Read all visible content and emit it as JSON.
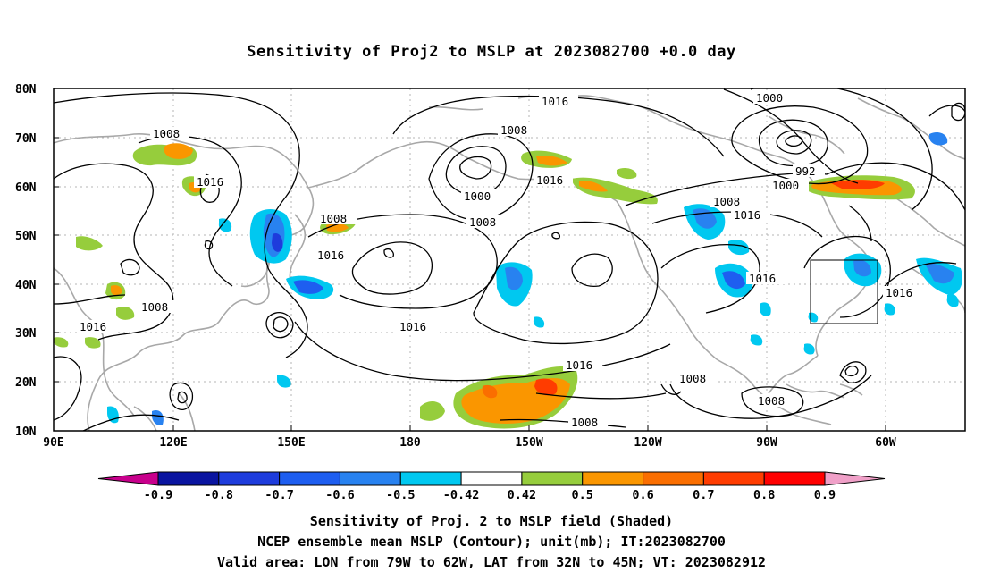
{
  "title": "Sensitivity of Proj2 to MSLP at 2023082700 +0.0 day",
  "lat_labels": [
    "80N",
    "70N",
    "60N",
    "50N",
    "40N",
    "30N",
    "20N",
    "10N"
  ],
  "lon_labels": [
    "90E",
    "120E",
    "150E",
    "180",
    "150W",
    "120W",
    "90W",
    "60W"
  ],
  "contour_labels": [
    "1016",
    "1000",
    "1008",
    "1008",
    "1016",
    "992",
    "1000",
    "1016",
    "1008",
    "1016",
    "1000",
    "1008",
    "1008",
    "1016",
    "1016",
    "1016",
    "1008",
    "1016",
    "1016",
    "1016",
    "1008",
    "1008",
    "1008"
  ],
  "colorbar": {
    "labels": [
      "-0.9",
      "-0.8",
      "-0.7",
      "-0.6",
      "-0.5",
      "-0.42",
      "0.42",
      "0.5",
      "0.6",
      "0.7",
      "0.8",
      "0.9"
    ],
    "colors": [
      "#c8008c",
      "#0a14a0",
      "#1e3cdc",
      "#1e5ef0",
      "#2882f0",
      "#00c8f0",
      "#ffffff",
      "#96cd3c",
      "#fa9600",
      "#fa6e00",
      "#ff3c00",
      "#ff0000",
      "#f0a0c8"
    ]
  },
  "captions": [
    "Sensitivity of Proj. 2 to MSLP field (Shaded)",
    "NCEP ensemble mean MSLP (Contour); unit(mb); IT:2023082700",
    "Valid area: LON from 79W to 62W, LAT from 32N to 45N; VT: 2023082912"
  ]
}
